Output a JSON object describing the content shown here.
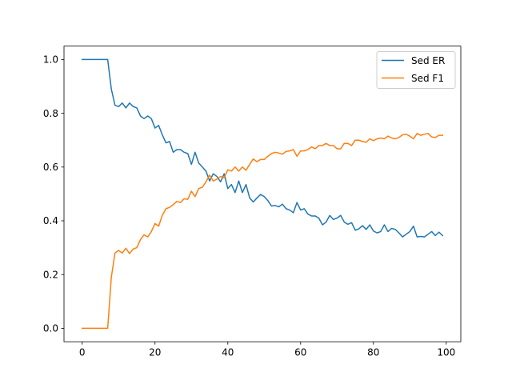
{
  "chart_data": {
    "type": "line",
    "title": "",
    "xlabel": "",
    "ylabel": "",
    "xlim": [
      -5,
      104
    ],
    "ylim": [
      -0.05,
      1.05
    ],
    "x_ticks": [
      0,
      20,
      40,
      60,
      80,
      100
    ],
    "x_tick_labels": [
      "0",
      "20",
      "40",
      "60",
      "80",
      "100"
    ],
    "y_ticks": [
      0.0,
      0.2,
      0.4,
      0.6,
      0.8,
      1.0
    ],
    "y_tick_labels": [
      "0.0",
      "0.2",
      "0.4",
      "0.6",
      "0.8",
      "1.0"
    ],
    "grid": false,
    "legend_position": "top-right",
    "x": [
      0,
      1,
      2,
      3,
      4,
      5,
      6,
      7,
      8,
      9,
      10,
      11,
      12,
      13,
      14,
      15,
      16,
      17,
      18,
      19,
      20,
      21,
      22,
      23,
      24,
      25,
      26,
      27,
      28,
      29,
      30,
      31,
      32,
      33,
      34,
      35,
      36,
      37,
      38,
      39,
      40,
      41,
      42,
      43,
      44,
      45,
      46,
      47,
      48,
      49,
      50,
      51,
      52,
      53,
      54,
      55,
      56,
      57,
      58,
      59,
      60,
      61,
      62,
      63,
      64,
      65,
      66,
      67,
      68,
      69,
      70,
      71,
      72,
      73,
      74,
      75,
      76,
      77,
      78,
      79,
      80,
      81,
      82,
      83,
      84,
      85,
      86,
      87,
      88,
      89,
      90,
      91,
      92,
      93,
      94,
      95,
      96,
      97,
      98,
      99
    ],
    "series": [
      {
        "name": "Sed ER",
        "color": "#1f77b4",
        "values": [
          1.0,
          1.0,
          1.0,
          1.0,
          1.0,
          1.0,
          1.0,
          1.0,
          0.89,
          0.83,
          0.825,
          0.838,
          0.82,
          0.838,
          0.825,
          0.82,
          0.79,
          0.78,
          0.79,
          0.78,
          0.745,
          0.755,
          0.72,
          0.69,
          0.695,
          0.655,
          0.665,
          0.665,
          0.655,
          0.65,
          0.61,
          0.655,
          0.615,
          0.6,
          0.585,
          0.548,
          0.575,
          0.565,
          0.545,
          0.575,
          0.52,
          0.535,
          0.505,
          0.548,
          0.505,
          0.535,
          0.485,
          0.47,
          0.485,
          0.498,
          0.49,
          0.475,
          0.455,
          0.457,
          0.452,
          0.462,
          0.445,
          0.44,
          0.43,
          0.468,
          0.44,
          0.445,
          0.425,
          0.418,
          0.418,
          0.41,
          0.385,
          0.395,
          0.42,
          0.405,
          0.41,
          0.42,
          0.395,
          0.387,
          0.393,
          0.365,
          0.37,
          0.382,
          0.368,
          0.385,
          0.362,
          0.355,
          0.36,
          0.385,
          0.36,
          0.372,
          0.368,
          0.355,
          0.34,
          0.35,
          0.36,
          0.38,
          0.34,
          0.342,
          0.34,
          0.35,
          0.36,
          0.345,
          0.358,
          0.345
        ]
      },
      {
        "name": "Sed F1",
        "color": "#ff7f0e",
        "values": [
          0.0,
          0.0,
          0.0,
          0.0,
          0.0,
          0.0,
          0.0,
          0.0,
          0.19,
          0.28,
          0.29,
          0.28,
          0.298,
          0.278,
          0.295,
          0.3,
          0.33,
          0.348,
          0.34,
          0.36,
          0.39,
          0.38,
          0.42,
          0.445,
          0.45,
          0.46,
          0.472,
          0.468,
          0.482,
          0.48,
          0.51,
          0.49,
          0.52,
          0.525,
          0.545,
          0.57,
          0.548,
          0.555,
          0.565,
          0.56,
          0.59,
          0.585,
          0.6,
          0.585,
          0.6,
          0.588,
          0.61,
          0.63,
          0.62,
          0.628,
          0.628,
          0.64,
          0.65,
          0.655,
          0.652,
          0.648,
          0.658,
          0.66,
          0.665,
          0.64,
          0.66,
          0.66,
          0.665,
          0.675,
          0.668,
          0.68,
          0.68,
          0.688,
          0.68,
          0.68,
          0.668,
          0.668,
          0.688,
          0.688,
          0.68,
          0.7,
          0.7,
          0.695,
          0.692,
          0.705,
          0.698,
          0.705,
          0.708,
          0.705,
          0.715,
          0.708,
          0.705,
          0.71,
          0.72,
          0.722,
          0.715,
          0.705,
          0.725,
          0.718,
          0.722,
          0.725,
          0.712,
          0.71,
          0.718,
          0.718
        ]
      }
    ]
  }
}
